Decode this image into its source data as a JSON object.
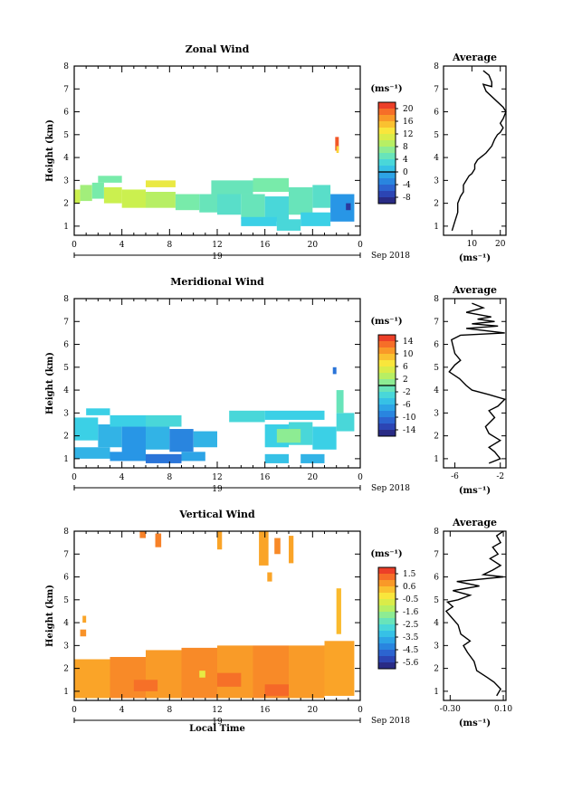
{
  "chart_data": [
    {
      "type": "heatmap",
      "title": "Zonal Wind",
      "ylabel": "Height (km)",
      "xlabel": "",
      "xticks": [
        "0",
        "4",
        "8",
        "12",
        "16",
        "20",
        "0"
      ],
      "yticks": [
        "1",
        "2",
        "3",
        "4",
        "5",
        "6",
        "7",
        "8"
      ],
      "xlim": [
        0,
        24
      ],
      "ylim": [
        0.6,
        8
      ],
      "day_label": "19",
      "date_label": "Sep 2018",
      "colorbar": {
        "label": "(ms⁻¹)",
        "ticks": [
          "20",
          "16",
          "12",
          "8",
          "4",
          "0",
          "-4",
          "-8"
        ],
        "vmin": -10,
        "vmax": 22,
        "zero_line": 0
      },
      "cells": [
        {
          "x0": 0,
          "x1": 0.5,
          "y0": 2.0,
          "y1": 2.6,
          "v": 10
        },
        {
          "x0": 0.5,
          "x1": 1.5,
          "y0": 2.1,
          "y1": 2.8,
          "v": 8
        },
        {
          "x0": 1.5,
          "x1": 2.5,
          "y0": 2.2,
          "y1": 2.9,
          "v": 6
        },
        {
          "x0": 2.5,
          "x1": 4,
          "y0": 2.0,
          "y1": 2.7,
          "v": 10
        },
        {
          "x0": 4,
          "x1": 6,
          "y0": 1.8,
          "y1": 2.6,
          "v": 10
        },
        {
          "x0": 6,
          "x1": 8.5,
          "y0": 1.8,
          "y1": 2.5,
          "v": 9
        },
        {
          "x0": 8.5,
          "x1": 10.5,
          "y0": 1.7,
          "y1": 2.4,
          "v": 6
        },
        {
          "x0": 10.5,
          "x1": 12,
          "y0": 1.6,
          "y1": 2.4,
          "v": 5
        },
        {
          "x0": 12,
          "x1": 14,
          "y0": 1.5,
          "y1": 2.5,
          "v": 4
        },
        {
          "x0": 14,
          "x1": 16,
          "y0": 1.3,
          "y1": 2.4,
          "v": 5
        },
        {
          "x0": 16,
          "x1": 18,
          "y0": 1.2,
          "y1": 2.3,
          "v": 3
        },
        {
          "x0": 18,
          "x1": 20,
          "y0": 1.5,
          "y1": 2.7,
          "v": 5
        },
        {
          "x0": 20,
          "x1": 21.5,
          "y0": 1.8,
          "y1": 2.8,
          "v": 4
        },
        {
          "x0": 6,
          "x1": 8.5,
          "y0": 2.7,
          "y1": 3.0,
          "v": 12
        },
        {
          "x0": 2.0,
          "x1": 4,
          "y0": 2.9,
          "y1": 3.2,
          "v": 6
        },
        {
          "x0": 11.5,
          "x1": 15,
          "y0": 2.4,
          "y1": 3.0,
          "v": 5
        },
        {
          "x0": 15,
          "x1": 18,
          "y0": 2.5,
          "y1": 3.1,
          "v": 6
        },
        {
          "x0": 14,
          "x1": 17,
          "y0": 1.0,
          "y1": 1.4,
          "v": 2
        },
        {
          "x0": 17,
          "x1": 19,
          "y0": 0.8,
          "y1": 1.3,
          "v": 3
        },
        {
          "x0": 19,
          "x1": 21.5,
          "y0": 1.0,
          "y1": 1.6,
          "v": 2
        },
        {
          "x0": 21.5,
          "x1": 23.5,
          "y0": 1.2,
          "y1": 2.4,
          "v": -2
        },
        {
          "x0": 22.8,
          "x1": 23.2,
          "y0": 1.7,
          "y1": 2.0,
          "v": -8
        },
        {
          "x0": 21.9,
          "x1": 22.2,
          "y0": 4.3,
          "y1": 4.9,
          "v": 20
        },
        {
          "x0": 22.0,
          "x1": 22.2,
          "y0": 4.2,
          "y1": 4.5,
          "v": 14
        }
      ],
      "profile": {
        "title": "Average",
        "xlabel": "(ms⁻¹)",
        "xticks": [
          "10",
          "20"
        ],
        "xtick_values": [
          10,
          20
        ],
        "xlim": [
          0,
          22
        ],
        "ylim": [
          0.6,
          8
        ],
        "points": [
          [
            3,
            0.8
          ],
          [
            4,
            1.2
          ],
          [
            5,
            1.6
          ],
          [
            5,
            2.0
          ],
          [
            6,
            2.3
          ],
          [
            7,
            2.5
          ],
          [
            7,
            2.8
          ],
          [
            8,
            3.0
          ],
          [
            9,
            3.2
          ],
          [
            10,
            3.3
          ],
          [
            11,
            3.5
          ],
          [
            11,
            3.7
          ],
          [
            12,
            3.9
          ],
          [
            14,
            4.1
          ],
          [
            15,
            4.2
          ],
          [
            17,
            4.5
          ],
          [
            18,
            4.8
          ],
          [
            19,
            5.0
          ],
          [
            20,
            5.1
          ],
          [
            21,
            5.3
          ],
          [
            20,
            5.5
          ],
          [
            21,
            5.7
          ],
          [
            22,
            6.0
          ],
          [
            21,
            6.2
          ],
          [
            15,
            6.9
          ],
          [
            14,
            7.2
          ],
          [
            17,
            7.1
          ],
          [
            17,
            7.3
          ],
          [
            16,
            7.6
          ],
          [
            14,
            7.8
          ]
        ]
      }
    },
    {
      "type": "heatmap",
      "title": "Meridional Wind",
      "ylabel": "Height (km)",
      "xlabel": "",
      "xticks": [
        "0",
        "4",
        "8",
        "12",
        "16",
        "20",
        "0"
      ],
      "yticks": [
        "1",
        "2",
        "3",
        "4",
        "5",
        "6",
        "7",
        "8"
      ],
      "xlim": [
        0,
        24
      ],
      "ylim": [
        0.6,
        8
      ],
      "day_label": "19",
      "date_label": "Sep 2018",
      "colorbar": {
        "label": "(ms⁻¹)",
        "ticks": [
          "14",
          "10",
          "6",
          "2",
          "-2",
          "-6",
          "-10",
          "-14"
        ],
        "vmin": -16,
        "vmax": 16,
        "zero_line": 0
      },
      "cells": [
        {
          "x0": 0,
          "x1": 2,
          "y0": 1.8,
          "y1": 2.8,
          "v": -4
        },
        {
          "x0": 2,
          "x1": 4,
          "y0": 1.5,
          "y1": 2.5,
          "v": -6
        },
        {
          "x0": 4,
          "x1": 6,
          "y0": 1.2,
          "y1": 2.4,
          "v": -8
        },
        {
          "x0": 6,
          "x1": 8,
          "y0": 1.4,
          "y1": 2.4,
          "v": -6
        },
        {
          "x0": 8,
          "x1": 10,
          "y0": 1.3,
          "y1": 2.3,
          "v": -9
        },
        {
          "x0": 10,
          "x1": 12,
          "y0": 1.5,
          "y1": 2.2,
          "v": -6
        },
        {
          "x0": 0,
          "x1": 3,
          "y0": 1.0,
          "y1": 1.5,
          "v": -6
        },
        {
          "x0": 3,
          "x1": 6,
          "y0": 0.9,
          "y1": 1.3,
          "v": -8
        },
        {
          "x0": 6,
          "x1": 9,
          "y0": 0.8,
          "y1": 1.2,
          "v": -10
        },
        {
          "x0": 9,
          "x1": 11,
          "y0": 0.9,
          "y1": 1.3,
          "v": -7
        },
        {
          "x0": 3,
          "x1": 6,
          "y0": 2.4,
          "y1": 2.9,
          "v": -4
        },
        {
          "x0": 6,
          "x1": 9,
          "y0": 2.4,
          "y1": 2.9,
          "v": -3
        },
        {
          "x0": 1,
          "x1": 3,
          "y0": 2.9,
          "y1": 3.2,
          "v": -4
        },
        {
          "x0": 16,
          "x1": 18,
          "y0": 1.5,
          "y1": 2.5,
          "v": -4
        },
        {
          "x0": 18,
          "x1": 20,
          "y0": 1.6,
          "y1": 2.6,
          "v": -3
        },
        {
          "x0": 17,
          "x1": 19,
          "y0": 1.7,
          "y1": 2.3,
          "v": 1
        },
        {
          "x0": 20,
          "x1": 22,
          "y0": 1.4,
          "y1": 2.4,
          "v": -4
        },
        {
          "x0": 16,
          "x1": 18,
          "y0": 0.8,
          "y1": 1.2,
          "v": -5
        },
        {
          "x0": 19,
          "x1": 21,
          "y0": 0.8,
          "y1": 1.2,
          "v": -6
        },
        {
          "x0": 13,
          "x1": 16,
          "y0": 2.6,
          "y1": 3.1,
          "v": -3
        },
        {
          "x0": 16,
          "x1": 21,
          "y0": 2.7,
          "y1": 3.1,
          "v": -4
        },
        {
          "x0": 22,
          "x1": 23.5,
          "y0": 2.2,
          "y1": 3.0,
          "v": -3
        },
        {
          "x0": 21.7,
          "x1": 22,
          "y0": 4.7,
          "y1": 5.0,
          "v": -10
        },
        {
          "x0": 22.0,
          "x1": 22.6,
          "y0": 3.0,
          "y1": 4.0,
          "v": -1
        }
      ],
      "profile": {
        "title": "Average",
        "xlabel": "(ms⁻¹)",
        "xticks": [
          "-6",
          "-2"
        ],
        "xtick_values": [
          -6,
          -2
        ],
        "xlim": [
          -7,
          -1.5
        ],
        "ylim": [
          0.6,
          8
        ],
        "points": [
          [
            -3,
            0.8
          ],
          [
            -2,
            1.0
          ],
          [
            -2.5,
            1.3
          ],
          [
            -3,
            1.5
          ],
          [
            -2,
            1.8
          ],
          [
            -3,
            2.1
          ],
          [
            -3.3,
            2.4
          ],
          [
            -2.5,
            2.8
          ],
          [
            -3,
            3.1
          ],
          [
            -2.2,
            3.3
          ],
          [
            -1.6,
            3.6
          ],
          [
            -3,
            3.8
          ],
          [
            -4.5,
            4.0
          ],
          [
            -5,
            4.2
          ],
          [
            -5.6,
            4.5
          ],
          [
            -6.5,
            4.8
          ],
          [
            -6,
            5.1
          ],
          [
            -5.5,
            5.3
          ],
          [
            -6,
            5.6
          ],
          [
            -6.3,
            6.2
          ],
          [
            -5.5,
            6.4
          ],
          [
            -1.6,
            6.5
          ],
          [
            -5,
            6.7
          ],
          [
            -2.2,
            6.8
          ],
          [
            -4.5,
            6.9
          ],
          [
            -2.5,
            7.0
          ],
          [
            -4,
            7.1
          ],
          [
            -2.8,
            7.2
          ],
          [
            -5,
            7.4
          ],
          [
            -3.5,
            7.6
          ],
          [
            -4.5,
            7.8
          ]
        ]
      }
    },
    {
      "type": "heatmap",
      "title": "Vertical Wind",
      "ylabel": "Height (km)",
      "xlabel": "Local Time",
      "xticks": [
        "0",
        "4",
        "8",
        "12",
        "16",
        "20",
        "0"
      ],
      "yticks": [
        "1",
        "2",
        "3",
        "4",
        "5",
        "6",
        "7",
        "8"
      ],
      "xlim": [
        0,
        24
      ],
      "ylim": [
        0.6,
        8
      ],
      "day_label": "19",
      "date_label": "Sep 2018",
      "colorbar": {
        "label": "(ms⁻¹)",
        "ticks": [
          "1.5",
          "0.6",
          "-0.5",
          "-1.6",
          "-2.5",
          "-3.5",
          "-4.5",
          "-5.6"
        ],
        "vmin": -6.2,
        "vmax": 2.0,
        "zero_line": null
      },
      "cells": [
        {
          "x0": 0,
          "x1": 3,
          "y0": 0.7,
          "y1": 2.4,
          "v": 0.6
        },
        {
          "x0": 3,
          "x1": 6,
          "y0": 0.7,
          "y1": 2.5,
          "v": 0.9
        },
        {
          "x0": 6,
          "x1": 9,
          "y0": 0.7,
          "y1": 2.8,
          "v": 0.7
        },
        {
          "x0": 9,
          "x1": 12,
          "y0": 0.7,
          "y1": 2.9,
          "v": 0.9
        },
        {
          "x0": 12,
          "x1": 15,
          "y0": 0.7,
          "y1": 3.0,
          "v": 0.7
        },
        {
          "x0": 15,
          "x1": 18,
          "y0": 0.7,
          "y1": 3.0,
          "v": 0.9
        },
        {
          "x0": 18,
          "x1": 21,
          "y0": 0.7,
          "y1": 3.0,
          "v": 0.7
        },
        {
          "x0": 21,
          "x1": 23.5,
          "y0": 0.8,
          "y1": 3.2,
          "v": 0.6
        },
        {
          "x0": 5,
          "x1": 7,
          "y0": 1.0,
          "y1": 1.5,
          "v": 1.2
        },
        {
          "x0": 12,
          "x1": 14,
          "y0": 1.2,
          "y1": 1.8,
          "v": 1.2
        },
        {
          "x0": 16,
          "x1": 18,
          "y0": 0.8,
          "y1": 1.3,
          "v": 1.3
        },
        {
          "x0": 10.5,
          "x1": 11,
          "y0": 1.6,
          "y1": 1.9,
          "v": -0.6
        },
        {
          "x0": 0.5,
          "x1": 1,
          "y0": 3.4,
          "y1": 3.7,
          "v": 0.8
        },
        {
          "x0": 0.7,
          "x1": 1.0,
          "y0": 4.0,
          "y1": 4.3,
          "v": 0.6
        },
        {
          "x0": 22.0,
          "x1": 22.4,
          "y0": 3.5,
          "y1": 5.5,
          "v": 0.3
        },
        {
          "x0": 5.5,
          "x1": 6.0,
          "y0": 7.7,
          "y1": 8.0,
          "v": 1.0
        },
        {
          "x0": 6.8,
          "x1": 7.3,
          "y0": 7.3,
          "y1": 7.9,
          "v": 1.0
        },
        {
          "x0": 12.0,
          "x1": 12.4,
          "y0": 7.2,
          "y1": 8.0,
          "v": 0.6
        },
        {
          "x0": 15.5,
          "x1": 16.3,
          "y0": 6.5,
          "y1": 8.0,
          "v": 0.6
        },
        {
          "x0": 16.8,
          "x1": 17.3,
          "y0": 7.0,
          "y1": 7.7,
          "v": 0.9
        },
        {
          "x0": 18.0,
          "x1": 18.4,
          "y0": 6.6,
          "y1": 7.8,
          "v": 0.6
        },
        {
          "x0": 16.2,
          "x1": 16.6,
          "y0": 5.8,
          "y1": 6.2,
          "v": 0.6
        }
      ],
      "profile": {
        "title": "Average",
        "xlabel": "(ms⁻¹)",
        "xticks": [
          "-0.30",
          "0.10"
        ],
        "xtick_values": [
          -0.3,
          0.1
        ],
        "xlim": [
          -0.35,
          0.12
        ],
        "ylim": [
          0.6,
          8
        ],
        "points": [
          [
            0.05,
            0.8
          ],
          [
            0.08,
            1.1
          ],
          [
            0.03,
            1.4
          ],
          [
            -0.02,
            1.6
          ],
          [
            -0.1,
            1.9
          ],
          [
            -0.12,
            2.3
          ],
          [
            -0.17,
            2.7
          ],
          [
            -0.2,
            3.0
          ],
          [
            -0.15,
            3.2
          ],
          [
            -0.22,
            3.5
          ],
          [
            -0.24,
            3.9
          ],
          [
            -0.3,
            4.3
          ],
          [
            -0.33,
            4.5
          ],
          [
            -0.28,
            4.7
          ],
          [
            -0.32,
            4.9
          ],
          [
            -0.24,
            5.0
          ],
          [
            -0.15,
            5.2
          ],
          [
            -0.28,
            5.4
          ],
          [
            -0.08,
            5.6
          ],
          [
            -0.25,
            5.8
          ],
          [
            0.1,
            6.0
          ],
          [
            -0.05,
            6.1
          ],
          [
            0.02,
            6.3
          ],
          [
            0.08,
            6.5
          ],
          [
            0.0,
            6.8
          ],
          [
            0.06,
            7.0
          ],
          [
            0.02,
            7.3
          ],
          [
            0.08,
            7.5
          ],
          [
            0.05,
            7.8
          ],
          [
            0.1,
            8.0
          ]
        ]
      }
    }
  ]
}
